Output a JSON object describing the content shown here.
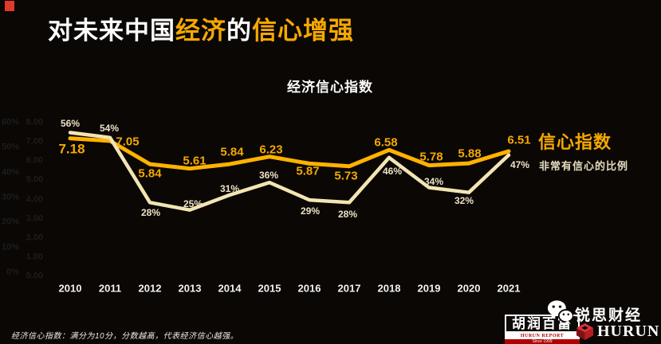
{
  "page": {
    "title": {
      "parts": [
        {
          "text": "对未来中国",
          "accent": false
        },
        {
          "text": "经济",
          "accent": true
        },
        {
          "text": "的",
          "accent": false
        },
        {
          "text": "信心增强",
          "accent": true
        }
      ]
    },
    "footnote": "经济信心指数：满分为10分，分数越高，代表经济信心越强。",
    "accent_color": "#f5a800",
    "corner_mark_color": "#e03a2b"
  },
  "chart_data": {
    "type": "line",
    "title": "经济信心指数",
    "categories": [
      "2010",
      "2011",
      "2012",
      "2013",
      "2014",
      "2015",
      "2016",
      "2017",
      "2018",
      "2019",
      "2020",
      "2021"
    ],
    "series": [
      {
        "name": "信心指数",
        "color": "#ffb200",
        "label_color": "#f5a800",
        "values": [
          7.18,
          7.05,
          5.84,
          5.61,
          5.84,
          6.23,
          5.87,
          5.73,
          6.58,
          5.78,
          5.88,
          6.51
        ],
        "axis_range": [
          0,
          8
        ],
        "axis_ticks": [
          "8.00",
          "7.00",
          "6.00",
          "5.00",
          "4.00",
          "3.00",
          "2.00",
          "1.00",
          "0.00"
        ]
      },
      {
        "name": "非常有信心的比例",
        "color": "#f3e5b2",
        "label_color": "#ece2c4",
        "unit": "%",
        "values": [
          56,
          54,
          28,
          25,
          31,
          36,
          29,
          28,
          46,
          34,
          32,
          47
        ],
        "axis_range": [
          0,
          60
        ],
        "axis_ticks": [
          "60%",
          "50%",
          "40%",
          "30%",
          "20%",
          "10%",
          "0%"
        ]
      }
    ],
    "legend_position": "right",
    "grid": false
  },
  "footer_logos": {
    "hurun_report": {
      "cn": "胡润百富",
      "en": "HURUN REPORT",
      "since": "Since 1999"
    },
    "ruisi": "锐思财经",
    "hurun_en": "HURUN"
  }
}
